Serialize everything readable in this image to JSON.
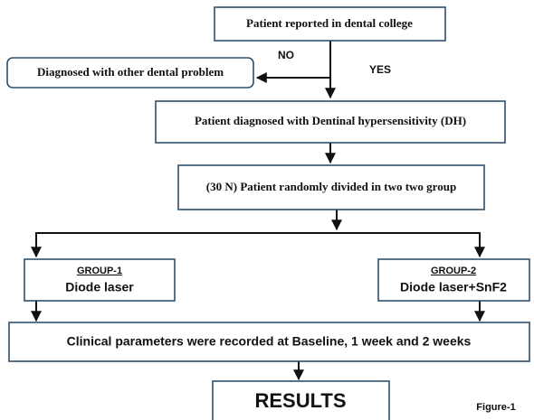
{
  "nodes": [
    {
      "label": "Patient reported in dental college"
    },
    {
      "label": "Diagnosed with other dental problem"
    },
    {
      "label": "Patient diagnosed with Dentinal hypersensitivity (DH)"
    },
    {
      "label": "(30 N) Patient randomly divided in two two group"
    },
    {
      "group": "GROUP-1",
      "label": "Diode laser"
    },
    {
      "group": "GROUP-2",
      "label": "Diode laser+SnF2"
    },
    {
      "label": "Clinical parameters were recorded at Baseline, 1 week and 2 weeks"
    },
    {
      "label": "RESULTS"
    }
  ],
  "edges": [
    {
      "label": "NO"
    },
    {
      "label": "YES"
    }
  ],
  "caption": "Figure-1"
}
